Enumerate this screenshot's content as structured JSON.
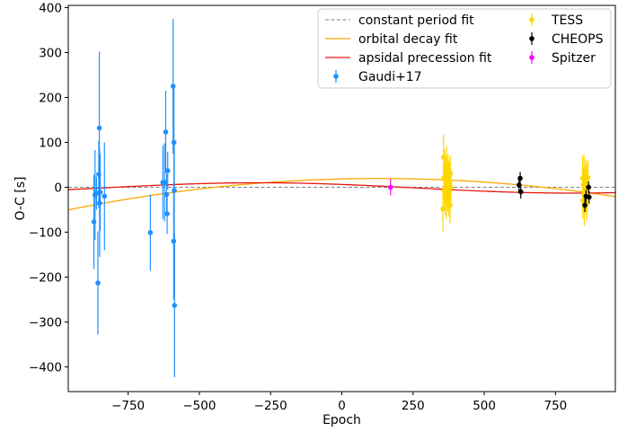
{
  "chart_data": {
    "type": "scatter",
    "title": "",
    "xlabel": "Epoch",
    "ylabel": "O-C [s]",
    "xlim": [
      -960,
      960
    ],
    "ylim": [
      -455,
      405
    ],
    "xticks": [
      -750,
      -500,
      -250,
      0,
      250,
      500,
      750
    ],
    "yticks": [
      -400,
      -300,
      -200,
      -100,
      0,
      100,
      200,
      300,
      400
    ],
    "xtick_labels": [
      "−750",
      "−500",
      "−250",
      "0",
      "250",
      "500",
      "750"
    ],
    "ytick_labels": [
      "−400",
      "−300",
      "−200",
      "−100",
      "0",
      "100",
      "200",
      "300",
      "400"
    ],
    "grid": false,
    "legend_position": "top-right",
    "models": [
      {
        "name": "constant period fit",
        "color": "#808080",
        "style": "dashed",
        "form": "linear",
        "coefficients": [
          0
        ]
      },
      {
        "name": "orbital decay fit",
        "color": "#ffa500",
        "style": "solid",
        "form": "quadratic",
        "coefficients": [
          18.5,
          0.0154,
          -5.88e-05
        ]
      },
      {
        "name": "apsidal precession fit",
        "color": "#e8170e",
        "style": "solid",
        "form": "sinusoid",
        "coefficients": [
          -1.5,
          11.5,
          2200,
          2.4
        ]
      }
    ],
    "series": [
      {
        "name": "Gaudi+17",
        "color": "#1e90ff",
        "points": [
          {
            "x": -870,
            "y": -77,
            "err": 105
          },
          {
            "x": -866,
            "y": -17,
            "err": 100
          },
          {
            "x": -861,
            "y": -13,
            "err": 37
          },
          {
            "x": -856,
            "y": -213,
            "err": 115
          },
          {
            "x": -853,
            "y": 29,
            "err": 75
          },
          {
            "x": -851,
            "y": 132,
            "err": 170
          },
          {
            "x": -850,
            "y": -35,
            "err": 120
          },
          {
            "x": -848,
            "y": -11,
            "err": 85
          },
          {
            "x": -833,
            "y": -20,
            "err": 120
          },
          {
            "x": -672,
            "y": -101,
            "err": 85
          },
          {
            "x": -628,
            "y": 11,
            "err": 82
          },
          {
            "x": -622,
            "y": 11,
            "err": 87
          },
          {
            "x": -618,
            "y": 123,
            "err": 92
          },
          {
            "x": -615,
            "y": -16,
            "err": 46
          },
          {
            "x": -613,
            "y": -59,
            "err": 45
          },
          {
            "x": -611,
            "y": 37,
            "err": 42
          },
          {
            "x": -592,
            "y": 225,
            "err": 150
          },
          {
            "x": -590,
            "y": -120,
            "err": 130
          },
          {
            "x": -589,
            "y": 100,
            "err": 128
          },
          {
            "x": -588,
            "y": -7,
            "err": 105
          },
          {
            "x": -587,
            "y": -263,
            "err": 160
          }
        ]
      },
      {
        "name": "TESS",
        "color": "#ffd700",
        "points": [
          {
            "x": 355,
            "y": -48,
            "err": 50
          },
          {
            "x": 357,
            "y": 67,
            "err": 50
          },
          {
            "x": 358,
            "y": 20,
            "err": 46
          },
          {
            "x": 360,
            "y": -8,
            "err": 44
          },
          {
            "x": 362,
            "y": 42,
            "err": 42
          },
          {
            "x": 363,
            "y": -22,
            "err": 40
          },
          {
            "x": 364,
            "y": 28,
            "err": 38
          },
          {
            "x": 366,
            "y": 8,
            "err": 38
          },
          {
            "x": 367,
            "y": -33,
            "err": 38
          },
          {
            "x": 368,
            "y": 52,
            "err": 40
          },
          {
            "x": 369,
            "y": -5,
            "err": 36
          },
          {
            "x": 371,
            "y": 14,
            "err": 36
          },
          {
            "x": 372,
            "y": -18,
            "err": 36
          },
          {
            "x": 373,
            "y": 35,
            "err": 38
          },
          {
            "x": 374,
            "y": 2,
            "err": 36
          },
          {
            "x": 376,
            "y": -28,
            "err": 38
          },
          {
            "x": 377,
            "y": 22,
            "err": 36
          },
          {
            "x": 378,
            "y": -10,
            "err": 36
          },
          {
            "x": 379,
            "y": 10,
            "err": 38
          },
          {
            "x": 380,
            "y": -40,
            "err": 40
          },
          {
            "x": 381,
            "y": 30,
            "err": 40
          },
          {
            "x": 383,
            "y": 0,
            "err": 40
          },
          {
            "x": 845,
            "y": 20,
            "err": 50
          },
          {
            "x": 846,
            "y": -30,
            "err": 40
          },
          {
            "x": 848,
            "y": 5,
            "err": 40
          },
          {
            "x": 849,
            "y": -15,
            "err": 38
          },
          {
            "x": 850,
            "y": 35,
            "err": 38
          },
          {
            "x": 851,
            "y": -48,
            "err": 38
          },
          {
            "x": 853,
            "y": -8,
            "err": 36
          },
          {
            "x": 854,
            "y": 12,
            "err": 36
          },
          {
            "x": 855,
            "y": -25,
            "err": 36
          },
          {
            "x": 856,
            "y": 26,
            "err": 36
          },
          {
            "x": 858,
            "y": -2,
            "err": 36
          },
          {
            "x": 859,
            "y": 16,
            "err": 38
          },
          {
            "x": 860,
            "y": -36,
            "err": 38
          },
          {
            "x": 861,
            "y": 6,
            "err": 36
          },
          {
            "x": 862,
            "y": -18,
            "err": 38
          },
          {
            "x": 864,
            "y": 22,
            "err": 38
          }
        ]
      },
      {
        "name": "CHEOPS",
        "color": "#000000",
        "points": [
          {
            "x": 622,
            "y": 5,
            "err": 16
          },
          {
            "x": 626,
            "y": 20,
            "err": 14
          },
          {
            "x": 628,
            "y": -10,
            "err": 15
          },
          {
            "x": 853,
            "y": -40,
            "err": 15
          },
          {
            "x": 857,
            "y": -20,
            "err": 14
          },
          {
            "x": 866,
            "y": 0,
            "err": 13
          },
          {
            "x": 868,
            "y": -22,
            "err": 14
          }
        ]
      },
      {
        "name": "Spitzer",
        "color": "#ff00ff",
        "points": [
          {
            "x": 171,
            "y": 0,
            "err": 18
          }
        ]
      }
    ],
    "legend": [
      {
        "label": "constant period fit",
        "kind": "line",
        "color": "#808080",
        "style": "dashed"
      },
      {
        "label": "orbital decay fit",
        "kind": "line",
        "color": "#ffa500",
        "style": "solid"
      },
      {
        "label": "apsidal precession fit",
        "kind": "line",
        "color": "#e8170e",
        "style": "solid"
      },
      {
        "label": "Gaudi+17",
        "kind": "errorbar",
        "color": "#1e90ff"
      },
      {
        "label": "TESS",
        "kind": "errorbar",
        "color": "#ffd700"
      },
      {
        "label": "CHEOPS",
        "kind": "errorbar",
        "color": "#000000"
      },
      {
        "label": "Spitzer",
        "kind": "errorbar",
        "color": "#ff00ff"
      }
    ]
  }
}
